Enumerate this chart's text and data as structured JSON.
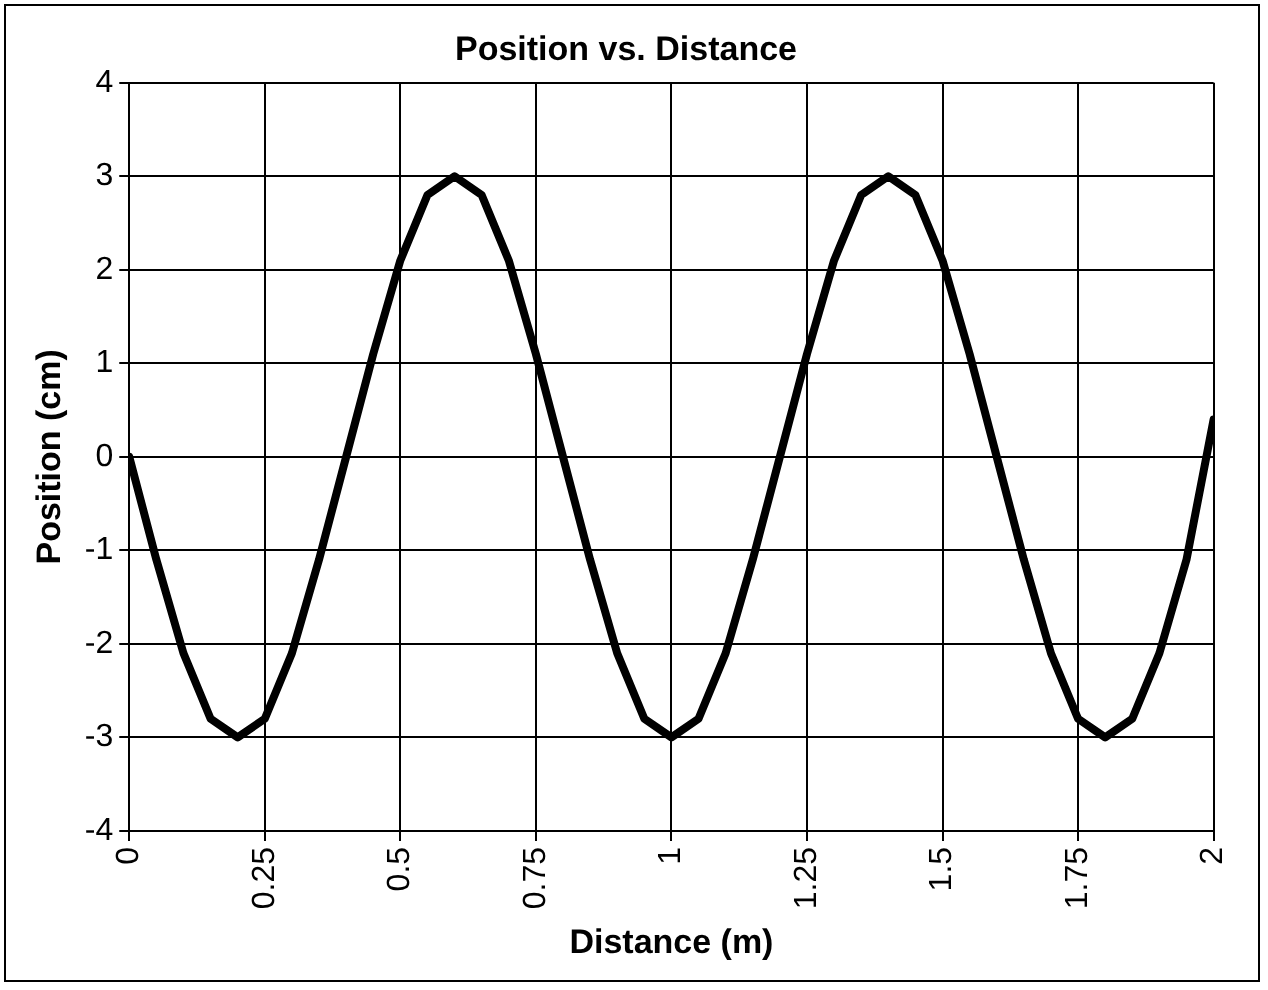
{
  "chart_data": {
    "type": "line",
    "title": "Position vs. Distance",
    "xlabel": "Distance (m)",
    "ylabel": "Position (cm)",
    "x": [
      0,
      0.05,
      0.1,
      0.15,
      0.2,
      0.25,
      0.3,
      0.35,
      0.4,
      0.45,
      0.5,
      0.55,
      0.6,
      0.65,
      0.7,
      0.75,
      0.8,
      0.85,
      0.9,
      0.95,
      1,
      1.05,
      1.1,
      1.15,
      1.2,
      1.25,
      1.3,
      1.35,
      1.4,
      1.45,
      1.5,
      1.55,
      1.6,
      1.65,
      1.7,
      1.75,
      1.8,
      1.85,
      1.9,
      1.95,
      2
    ],
    "series": [
      {
        "color": "#000000",
        "values": [
          0,
          -1.1,
          -2.1,
          -2.8,
          -3,
          -2.8,
          -2.1,
          -1.1,
          0,
          1.1,
          2.1,
          2.8,
          3,
          2.8,
          2.1,
          1.1,
          0,
          -1.1,
          -2.1,
          -2.8,
          -3,
          -2.8,
          -2.1,
          -1.1,
          0,
          1.1,
          2.1,
          2.8,
          3,
          2.8,
          2.1,
          1.1,
          0,
          -1.1,
          -2.1,
          -2.8,
          -3,
          -2.8,
          -2.1,
          -1.1,
          0.4
        ]
      }
    ],
    "xlim": [
      0,
      2
    ],
    "xticks": [
      0,
      0.25,
      0.5,
      0.75,
      1,
      1.25,
      1.5,
      1.75,
      2
    ],
    "ylim": [
      -4,
      4
    ],
    "yticks": [
      -4,
      -3,
      -2,
      -1,
      0,
      1,
      2,
      3,
      4
    ],
    "grid": true,
    "legend": false,
    "marker": "none",
    "line_style": "solid"
  }
}
